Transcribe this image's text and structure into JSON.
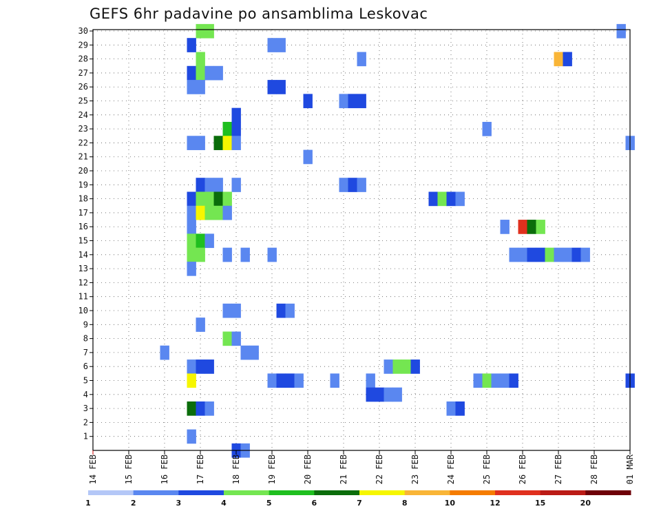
{
  "chart_data": {
    "type": "heatmap",
    "title": "GEFS 6hr padavine po ansamblima Leskovac",
    "xlabel": "",
    "ylabel": "",
    "x_tick_labels": [
      "14 FEB",
      "15 FEB",
      "16 FEB",
      "17 FEB",
      "18 FEB",
      "19 FEB",
      "20 FEB",
      "21 FEB",
      "22 FEB",
      "23 FEB",
      "24 FEB",
      "25 FEB",
      "26 FEB",
      "27 FEB",
      "28 FEB",
      "01 MAR"
    ],
    "y_tick_labels": [
      "1",
      "2",
      "3",
      "4",
      "5",
      "6",
      "7",
      "8",
      "9",
      "10",
      "11",
      "12",
      "13",
      "14",
      "15",
      "16",
      "17",
      "18",
      "19",
      "20",
      "21",
      "22",
      "23",
      "24",
      "25",
      "26",
      "27",
      "28",
      "29",
      "30"
    ],
    "x_unit": "6h step (4 per day), 0 = 14 FEB 00Z",
    "xlim": [
      0,
      60
    ],
    "ylim": [
      0,
      30
    ],
    "grid": true,
    "color_levels": [
      1,
      2,
      3,
      4,
      5,
      6,
      7,
      8,
      10,
      12,
      15,
      20
    ],
    "colors": [
      "#b4c7f7",
      "#5a87f0",
      "#1f49e0",
      "#74e651",
      "#1fbf1f",
      "#0b6d0b",
      "#f6f600",
      "#f9b537",
      "#f57c00",
      "#e0301e",
      "#bb1b16",
      "#6e0008"
    ],
    "cells": [
      [
        12,
        30,
        3
      ],
      [
        13,
        30,
        3
      ],
      [
        59,
        30,
        1
      ],
      [
        11,
        29,
        2
      ],
      [
        20,
        29,
        1
      ],
      [
        21,
        29,
        1
      ],
      [
        12,
        28,
        3
      ],
      [
        30,
        28,
        1
      ],
      [
        52,
        28,
        7
      ],
      [
        53,
        28,
        2
      ],
      [
        11,
        27,
        2
      ],
      [
        12,
        27,
        3
      ],
      [
        13,
        27,
        1
      ],
      [
        14,
        27,
        1
      ],
      [
        11,
        26,
        1
      ],
      [
        12,
        26,
        1
      ],
      [
        20,
        26,
        2
      ],
      [
        21,
        26,
        2
      ],
      [
        24,
        25,
        2
      ],
      [
        28,
        25,
        1
      ],
      [
        29,
        25,
        2
      ],
      [
        30,
        25,
        2
      ],
      [
        16,
        24,
        2
      ],
      [
        15,
        23,
        4
      ],
      [
        16,
        23,
        2
      ],
      [
        44,
        23,
        1
      ],
      [
        11,
        22,
        1
      ],
      [
        12,
        22,
        1
      ],
      [
        14,
        22,
        5
      ],
      [
        15,
        22,
        6
      ],
      [
        16,
        22,
        1
      ],
      [
        60,
        22,
        1
      ],
      [
        24,
        21,
        1
      ],
      [
        12,
        19,
        2
      ],
      [
        13,
        19,
        1
      ],
      [
        14,
        19,
        1
      ],
      [
        16,
        19,
        1
      ],
      [
        28,
        19,
        1
      ],
      [
        29,
        19,
        2
      ],
      [
        30,
        19,
        1
      ],
      [
        11,
        18,
        2
      ],
      [
        12,
        18,
        3
      ],
      [
        13,
        18,
        3
      ],
      [
        14,
        18,
        5
      ],
      [
        15,
        18,
        3
      ],
      [
        38,
        18,
        2
      ],
      [
        39,
        18,
        3
      ],
      [
        40,
        18,
        2
      ],
      [
        41,
        18,
        1
      ],
      [
        11,
        17,
        1
      ],
      [
        12,
        17,
        6
      ],
      [
        13,
        17,
        3
      ],
      [
        14,
        17,
        3
      ],
      [
        15,
        17,
        1
      ],
      [
        11,
        16,
        1
      ],
      [
        46,
        16,
        1
      ],
      [
        48,
        16,
        9
      ],
      [
        49,
        16,
        5
      ],
      [
        50,
        16,
        3
      ],
      [
        11,
        15,
        3
      ],
      [
        12,
        15,
        4
      ],
      [
        13,
        15,
        1
      ],
      [
        11,
        14,
        3
      ],
      [
        12,
        14,
        3
      ],
      [
        15,
        14,
        1
      ],
      [
        17,
        14,
        1
      ],
      [
        20,
        14,
        1
      ],
      [
        47,
        14,
        1
      ],
      [
        48,
        14,
        1
      ],
      [
        49,
        14,
        2
      ],
      [
        50,
        14,
        2
      ],
      [
        51,
        14,
        3
      ],
      [
        52,
        14,
        1
      ],
      [
        53,
        14,
        1
      ],
      [
        54,
        14,
        2
      ],
      [
        55,
        14,
        1
      ],
      [
        11,
        13,
        1
      ],
      [
        12,
        9,
        1
      ],
      [
        15,
        10,
        1
      ],
      [
        16,
        10,
        1
      ],
      [
        21,
        10,
        2
      ],
      [
        22,
        10,
        1
      ],
      [
        15,
        8,
        3
      ],
      [
        16,
        8,
        1
      ],
      [
        8,
        7,
        1
      ],
      [
        17,
        7,
        1
      ],
      [
        18,
        7,
        1
      ],
      [
        11,
        6,
        1
      ],
      [
        12,
        6,
        2
      ],
      [
        13,
        6,
        2
      ],
      [
        33,
        6,
        1
      ],
      [
        34,
        6,
        3
      ],
      [
        35,
        6,
        3
      ],
      [
        36,
        6,
        2
      ],
      [
        11,
        5,
        6
      ],
      [
        20,
        5,
        1
      ],
      [
        21,
        5,
        2
      ],
      [
        22,
        5,
        2
      ],
      [
        23,
        5,
        1
      ],
      [
        27,
        5,
        1
      ],
      [
        31,
        5,
        1
      ],
      [
        43,
        5,
        1
      ],
      [
        44,
        5,
        3
      ],
      [
        45,
        5,
        1
      ],
      [
        46,
        5,
        1
      ],
      [
        47,
        5,
        2
      ],
      [
        60,
        5,
        2
      ],
      [
        31,
        4,
        2
      ],
      [
        32,
        4,
        2
      ],
      [
        33,
        4,
        1
      ],
      [
        34,
        4,
        1
      ],
      [
        11,
        3,
        5
      ],
      [
        12,
        3,
        2
      ],
      [
        13,
        3,
        1
      ],
      [
        40,
        3,
        1
      ],
      [
        41,
        3,
        2
      ],
      [
        11,
        1,
        1
      ],
      [
        16,
        0,
        2
      ],
      [
        17,
        0,
        1
      ]
    ]
  }
}
